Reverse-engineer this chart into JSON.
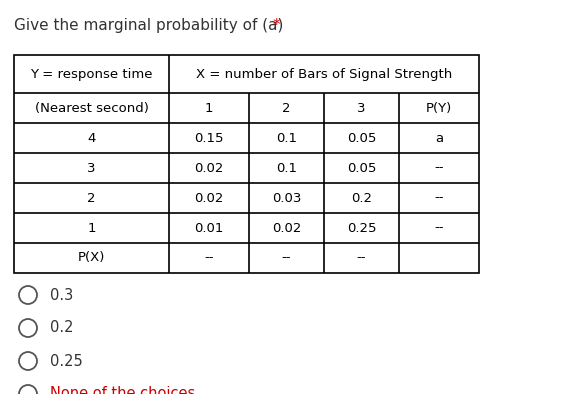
{
  "title_main": "Give the marginal probability of (a) ",
  "title_asterisk": "*",
  "title_color": "#333333",
  "title_asterisk_color": "#cc0000",
  "title_fontsize": 11,
  "header1_col0": "Y = response time",
  "header1_col1": "X = number of Bars of Signal Strength",
  "header2": [
    "(Nearest second)",
    "1",
    "2",
    "3",
    "P(Y)"
  ],
  "rows": [
    [
      "4",
      "0.15",
      "0.1",
      "0.05",
      "a"
    ],
    [
      "3",
      "0.02",
      "0.1",
      "0.05",
      "--"
    ],
    [
      "2",
      "0.02",
      "0.03",
      "0.2",
      "--"
    ],
    [
      "1",
      "0.01",
      "0.02",
      "0.25",
      "--"
    ],
    [
      "P(X)",
      "--",
      "--",
      "--",
      ""
    ]
  ],
  "choices": [
    "0.3",
    "0.2",
    "0.25",
    "None of the choices"
  ],
  "choice_color": "#333333",
  "none_color": "#cc0000",
  "bg_color": "#ffffff",
  "fig_width": 5.86,
  "fig_height": 3.94,
  "dpi": 100
}
